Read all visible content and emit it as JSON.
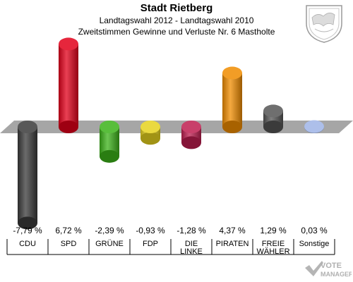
{
  "header": {
    "title": "Stadt Rietberg",
    "subtitle": "Landtagswahl 2012 - Landtagswahl 2010",
    "caption": "Zweitstimmen Gewinne und Verluste Nr. 6 Mastholte"
  },
  "watermark": {
    "line1": "VOTE",
    "line2": "MANAGER"
  },
  "colors": {
    "baseline_band": "#a6a6a6",
    "axis": "#000000"
  },
  "chart_data": {
    "type": "bar",
    "categories": [
      "CDU",
      "SPD",
      "GRÜNE",
      "FDP",
      "DIE LINKE",
      "PIRATEN",
      "FREIE WÄHLER",
      "Sonstige"
    ],
    "category_lines": [
      [
        "CDU"
      ],
      [
        "SPD"
      ],
      [
        "GRÜNE"
      ],
      [
        "FDP"
      ],
      [
        "DIE",
        "LINKE"
      ],
      [
        "PIRATEN"
      ],
      [
        "FREIE",
        "WÄHLER"
      ],
      [
        "Sonstige"
      ]
    ],
    "values": [
      -7.79,
      6.72,
      -2.39,
      -0.93,
      -1.28,
      4.37,
      1.29,
      0.03
    ],
    "value_labels": [
      "-7,79 %",
      "6,72 %",
      "-2,39 %",
      "-0,93 %",
      "-1,28 %",
      "4,37 %",
      "1,29 %",
      "0,03 %"
    ],
    "colors": [
      "#3a3a3a",
      "#e2001a",
      "#3cb319",
      "#e6d21e",
      "#be1e50",
      "#f08c00",
      "#555555",
      "#9fb4e6"
    ],
    "title": "Zweitstimmen Gewinne und Verluste Nr. 6 Mastholte",
    "xlabel": "",
    "ylabel": "",
    "grid": false,
    "legend": "none"
  }
}
